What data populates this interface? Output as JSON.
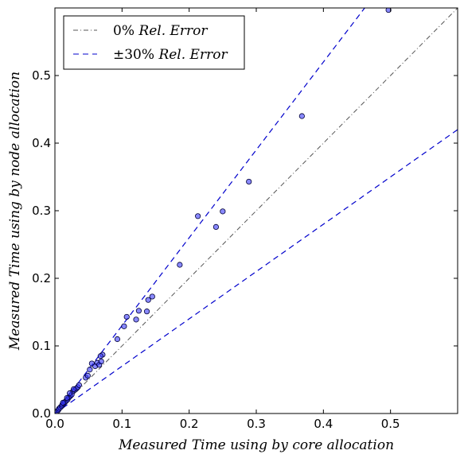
{
  "chart_data": {
    "type": "scatter",
    "title": "",
    "xlabel": "Measured Time using by core allocation",
    "ylabel": "Measured Time using by node allocation",
    "xlim": [
      0.0,
      0.6
    ],
    "ylim": [
      0.0,
      0.6
    ],
    "xticks": [
      "0.0",
      "0.1",
      "0.2",
      "0.3",
      "0.4",
      "0.5"
    ],
    "yticks": [
      "0.0",
      "0.1",
      "0.2",
      "0.3",
      "0.4",
      "0.5"
    ],
    "grid": false,
    "legend_position": "top-left",
    "reference_lines": [
      {
        "name": "0% Rel. Error",
        "pct_label": "0%",
        "name_text": "Rel. Error",
        "slope": 1.0,
        "style": "dash-dot",
        "color": "#555555"
      },
      {
        "name": "±30% Rel. Error",
        "pct_label": "±30%",
        "name_text": "Rel. Error",
        "slopes": [
          1.3,
          0.7
        ],
        "style": "dashed",
        "color": "#0000cc"
      }
    ],
    "points_color": "#3a3aff",
    "points": [
      [
        0.003,
        0.003
      ],
      [
        0.005,
        0.005
      ],
      [
        0.006,
        0.007
      ],
      [
        0.008,
        0.009
      ],
      [
        0.01,
        0.011
      ],
      [
        0.011,
        0.013
      ],
      [
        0.013,
        0.015
      ],
      [
        0.015,
        0.017
      ],
      [
        0.017,
        0.019
      ],
      [
        0.019,
        0.021
      ],
      [
        0.021,
        0.024
      ],
      [
        0.023,
        0.026
      ],
      [
        0.025,
        0.028
      ],
      [
        0.027,
        0.033
      ],
      [
        0.03,
        0.035
      ],
      [
        0.032,
        0.037
      ],
      [
        0.034,
        0.039
      ],
      [
        0.036,
        0.042
      ],
      [
        0.028,
        0.036
      ],
      [
        0.022,
        0.03
      ],
      [
        0.018,
        0.023
      ],
      [
        0.012,
        0.016
      ],
      [
        0.046,
        0.053
      ],
      [
        0.049,
        0.056
      ],
      [
        0.052,
        0.065
      ],
      [
        0.055,
        0.074
      ],
      [
        0.06,
        0.07
      ],
      [
        0.063,
        0.075
      ],
      [
        0.066,
        0.072
      ],
      [
        0.069,
        0.077
      ],
      [
        0.071,
        0.087
      ],
      [
        0.068,
        0.085
      ],
      [
        0.093,
        0.11
      ],
      [
        0.103,
        0.129
      ],
      [
        0.107,
        0.143
      ],
      [
        0.121,
        0.139
      ],
      [
        0.125,
        0.152
      ],
      [
        0.137,
        0.151
      ],
      [
        0.139,
        0.168
      ],
      [
        0.145,
        0.173
      ],
      [
        0.186,
        0.22
      ],
      [
        0.213,
        0.292
      ],
      [
        0.24,
        0.276
      ],
      [
        0.25,
        0.299
      ],
      [
        0.289,
        0.343
      ],
      [
        0.368,
        0.44
      ],
      [
        0.497,
        0.597
      ]
    ]
  }
}
